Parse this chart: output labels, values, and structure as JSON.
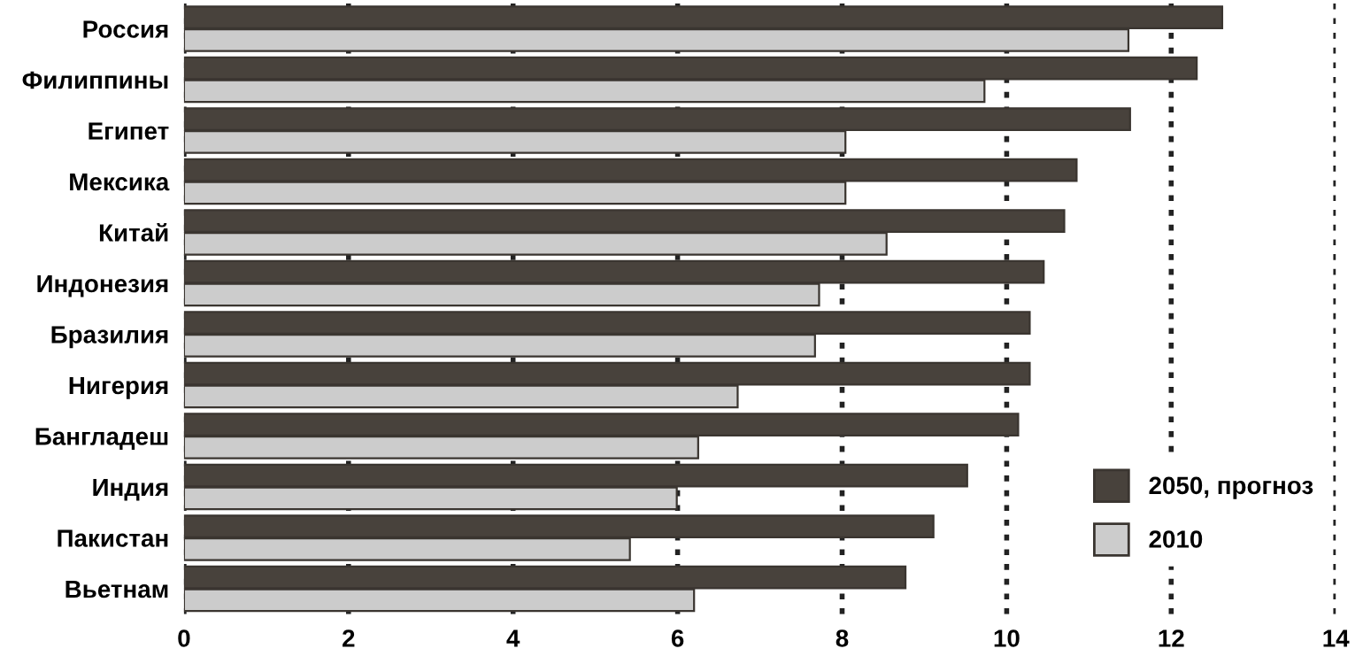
{
  "chart_data": {
    "type": "bar",
    "orientation": "horizontal",
    "categories": [
      "Россия",
      "Филиппины",
      "Египет",
      "Мексика",
      "Китай",
      "Индонезия",
      "Бразилия",
      "Нигерия",
      "Бангладеш",
      "Индия",
      "Пакистан",
      "Вьетнам"
    ],
    "series": [
      {
        "name": "2050, прогноз",
        "color": "#48423c",
        "values": [
          12.62,
          12.31,
          11.5,
          10.85,
          10.7,
          10.45,
          10.28,
          10.28,
          10.14,
          9.52,
          9.11,
          8.77
        ]
      },
      {
        "name": "2010",
        "color": "#cccccc",
        "values": [
          11.48,
          9.73,
          8.04,
          8.04,
          8.54,
          7.72,
          7.67,
          6.73,
          6.25,
          5.99,
          5.42,
          6.2
        ]
      }
    ],
    "xlim": [
      0,
      14
    ],
    "xticks": [
      0,
      2,
      4,
      6,
      8,
      10,
      12,
      14
    ],
    "grid": "x",
    "legend": "bottom right"
  }
}
